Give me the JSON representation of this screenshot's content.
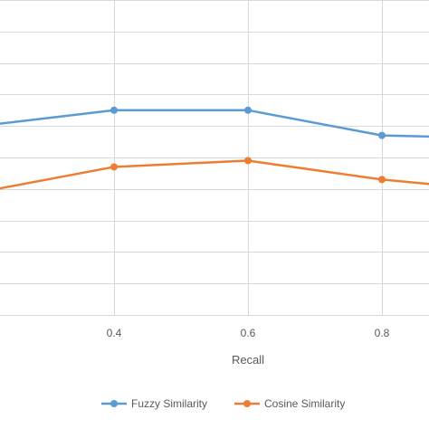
{
  "chart_data": {
    "type": "line",
    "xlabel": "Recall",
    "ylabel": "",
    "x_ticks": [
      0.4,
      0.6,
      0.8
    ],
    "x_tick_labels": [
      "0.4",
      "0.6",
      "0.8"
    ],
    "xlim": [
      0.2,
      0.86
    ],
    "ylim": [
      0,
      1
    ],
    "grid": true,
    "legend_position": "bottom",
    "series": [
      {
        "name": "Fuzzy Similarity",
        "color": "#5B9BD5",
        "x": [
          0.2,
          0.4,
          0.6,
          0.8,
          1.0
        ],
        "y": [
          0.6,
          0.65,
          0.65,
          0.57,
          0.56
        ]
      },
      {
        "name": "Cosine Similarity",
        "color": "#ED7D31",
        "x": [
          0.2,
          0.4,
          0.6,
          0.8,
          1.0
        ],
        "y": [
          0.39,
          0.47,
          0.49,
          0.43,
          0.39
        ]
      }
    ]
  }
}
